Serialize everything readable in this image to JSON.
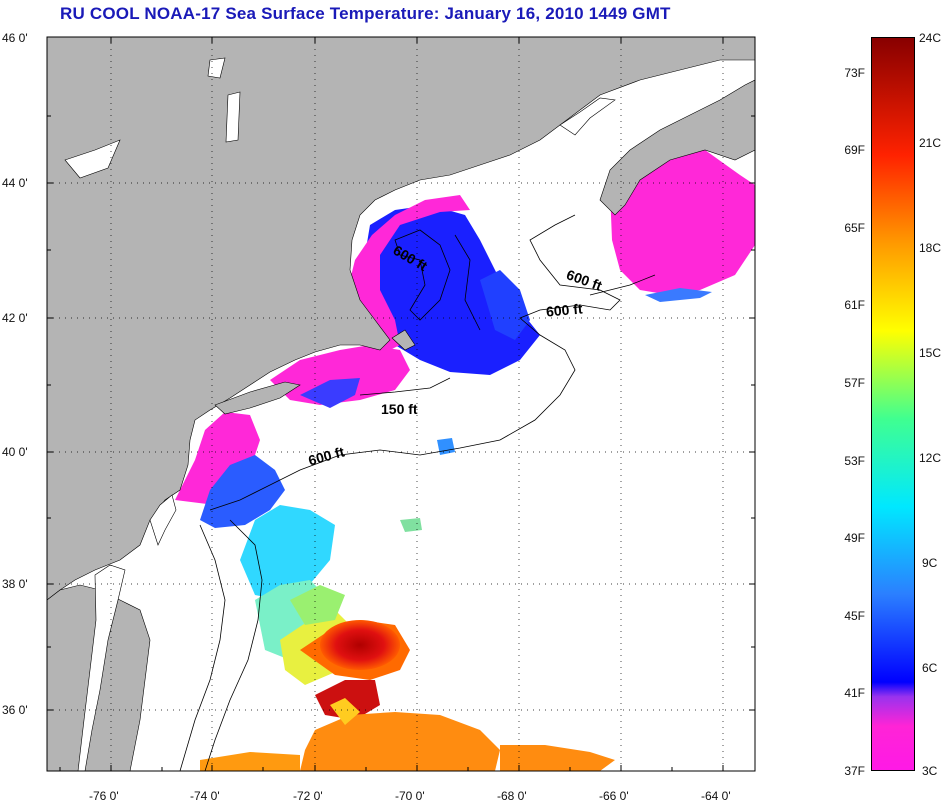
{
  "title": "RU COOL  NOAA-17  Sea Surface Temperature:  January 16, 2010 1449 GMT",
  "map": {
    "lat_labels": [
      "46 0'",
      "44 0'",
      "42 0'",
      "40 0'",
      "38 0'",
      "36 0'"
    ],
    "lon_labels": [
      "-76 0'",
      "-74 0'",
      "-72 0'",
      "-70 0'",
      "-68 0'",
      "-66 0'",
      "-64 0'"
    ],
    "contours": [
      {
        "label": "600 ft",
        "rotate": 30
      },
      {
        "label": "600 ft",
        "rotate": 20
      },
      {
        "label": "600 ft",
        "rotate": -5
      },
      {
        "label": "150 ft",
        "rotate": 0
      },
      {
        "label": "600 ft",
        "rotate": -15
      }
    ],
    "colors": {
      "land": "#b4b4b4",
      "water": "#ffffff",
      "title": "#1a1ab8"
    }
  },
  "colorbar": {
    "top_c": "24C",
    "bottom_f": "37F",
    "bottom_c": "3C",
    "fahrenheit_ticks": [
      "73F",
      "69F",
      "65F",
      "61F",
      "57F",
      "53F",
      "49F",
      "45F",
      "41F"
    ],
    "celsius_ticks": [
      "21C",
      "18C",
      "15C",
      "12C",
      "9C",
      "6C"
    ]
  }
}
